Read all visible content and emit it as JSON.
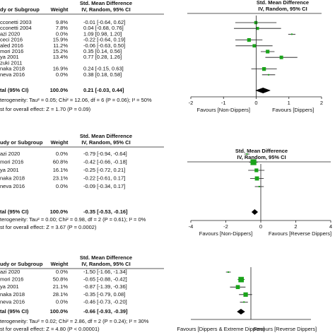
{
  "chart_data": [
    {
      "type": "forest",
      "header": {
        "study": "dy or Subgroup",
        "weight": "Weight",
        "effect": "Std. Mean Difference",
        "method": "IV, Random, 95% CI"
      },
      "plot_header": {
        "effect": "Std. Mean Difference",
        "method": "IV, Random, 95% CI"
      },
      "studies": [
        "cconetti 2003",
        "cconetti 2004",
        "azi 2020",
        "ceci 2016",
        "aled 2016",
        "mori 2016",
        "ya 2001",
        "zuki 2011",
        "naka 2018",
        "neva 2016"
      ],
      "weights": [
        9.8,
        7.8,
        0.0,
        15.9,
        11.2,
        15.2,
        13.4,
        null,
        16.9,
        0.0
      ],
      "weight_labels": [
        "9.8%",
        "7.8%",
        "0.0%",
        "15.9%",
        "11.2%",
        "15.2%",
        "13.4%",
        null,
        "16.9%",
        "0.0%"
      ],
      "values": [
        -0.01,
        0.04,
        1.09,
        -0.22,
        -0.06,
        0.35,
        0.77,
        null,
        0.24,
        0.38
      ],
      "lower": [
        -0.64,
        -0.68,
        0.98,
        -0.64,
        -0.63,
        0.14,
        0.28,
        null,
        -0.15,
        0.18
      ],
      "upper": [
        0.62,
        0.76,
        1.2,
        0.19,
        0.5,
        0.56,
        1.26,
        null,
        0.63,
        0.58
      ],
      "value_labels": [
        "-0.01 [-0.64, 0.62]",
        "0.04 [-0.68, 0.76]",
        "1.09 [0.98, 1.20]",
        "-0.22 [-0.64, 0.19]",
        "-0.06 [-0.63, 0.50]",
        "0.35 [0.14, 0.56]",
        "0.77 [0.28, 1.26]",
        null,
        "0.24 [-0.15, 0.63]",
        "0.38 [0.18, 0.58]"
      ],
      "total": {
        "label": "tal (95% CI)",
        "weight_label": "100.0%",
        "value": 0.21,
        "lower": -0.03,
        "upper": 0.44,
        "value_label": "0.21 [-0.03, 0.44]"
      },
      "heterogeneity": "terogeneity: Tau² = 0.05; Chi² = 12.06, df = 6 (P = 0.06); I² = 50%",
      "overall_test": "st for overall effect: Z = 1.70 (P = 0.09)",
      "favours": [
        "Favours [Non-Dippers]",
        "Favours [Dippers]"
      ],
      "xlim": [
        -2,
        2
      ],
      "xticks": [
        -2,
        -1,
        0,
        1,
        2
      ]
    },
    {
      "type": "forest",
      "header": {
        "study": "udy or Subgroup",
        "weight": "Weight",
        "effect": "Std. Mean Difference",
        "method": "IV, Random, 95% CI"
      },
      "plot_header": {
        "effect": "Std. Mean Difference",
        "method": "IV, Random, 95% CI"
      },
      "studies": [
        "azi 2020",
        "mori 2016",
        "ya 2001",
        "naka 2018",
        "neva 2016"
      ],
      "weights": [
        0.0,
        60.8,
        16.1,
        23.1,
        0.0
      ],
      "weight_labels": [
        "0.0%",
        "60.8%",
        "16.1%",
        "23.1%",
        "0.0%"
      ],
      "values": [
        -0.79,
        -0.42,
        -0.25,
        -0.22,
        -0.09
      ],
      "lower": [
        -0.94,
        -0.66,
        -0.72,
        -0.61,
        -0.34
      ],
      "upper": [
        -0.64,
        -0.18,
        0.21,
        0.17,
        0.17
      ],
      "value_labels": [
        "-0.79 [-0.94, -0.64]",
        "-0.42 [-0.66, -0.18]",
        "-0.25 [-0.72, 0.21]",
        "-0.22 [-0.61, 0.17]",
        "-0.09 [-0.34, 0.17]"
      ],
      "total": {
        "label": "tal (95% CI)",
        "weight_label": "100.0%",
        "value": -0.35,
        "lower": -0.53,
        "upper": -0.16,
        "value_label": "-0.35 [-0.53, -0.16]"
      },
      "heterogeneity": "terogeneity: Tau² = 0.00; Chi² = 0.98, df = 2 (P = 0.61); I² = 0%",
      "overall_test": "st for overall effect: Z = 3.67 (P = 0.0002)",
      "favours": [
        "Favours [Non-Dippers]",
        "Favours [Reverse Dippers]"
      ],
      "xlim": [
        -4,
        4
      ],
      "xticks": [
        -4,
        -2,
        0,
        2,
        4
      ]
    },
    {
      "type": "forest",
      "header": {
        "study": "udy or Subgroup",
        "weight": "Weight",
        "effect": "Std. Mean Difference",
        "method": "IV, Random, 95% CI"
      },
      "studies": [
        "azi 2020",
        "mori 2016",
        "ya 2001",
        "naka 2018",
        "neva 2016"
      ],
      "weights": [
        0.0,
        50.8,
        21.1,
        28.1,
        0.0
      ],
      "weight_labels": [
        "0.0%",
        "50.8%",
        "21.1%",
        "28.1%",
        "0.0%"
      ],
      "values": [
        -1.5,
        -0.65,
        -0.87,
        -0.35,
        -0.46
      ],
      "lower": [
        -1.66,
        -0.88,
        -1.39,
        -0.79,
        -0.73
      ],
      "upper": [
        -1.34,
        -0.42,
        -0.36,
        0.08,
        -0.2
      ],
      "value_labels": [
        "-1.50 [-1.66, -1.34]",
        "-0.65 [-0.88, -0.42]",
        "-0.87 [-1.39, -0.36]",
        "-0.35 [-0.79, 0.08]",
        "-0.46 [-0.73, -0.20]"
      ],
      "total": {
        "label": "tal (95% CI)",
        "weight_label": "100.0%",
        "value": -0.66,
        "lower": -0.93,
        "upper": -0.39,
        "value_label": "-0.66 [-0.93, -0.39]"
      },
      "heterogeneity": "terogeneity: Tau² = 0.02; Chi² = 2.86, df = 2 (P = 0.24); I² = 30%",
      "overall_test": "st for overall effect: Z = 4.80 (P < 0.00001)",
      "favours": [
        "Favours [Dippers & Extreme Dippers]",
        "Favours [Reverse Dippers]"
      ],
      "xlim": [
        -4,
        4
      ]
    }
  ]
}
